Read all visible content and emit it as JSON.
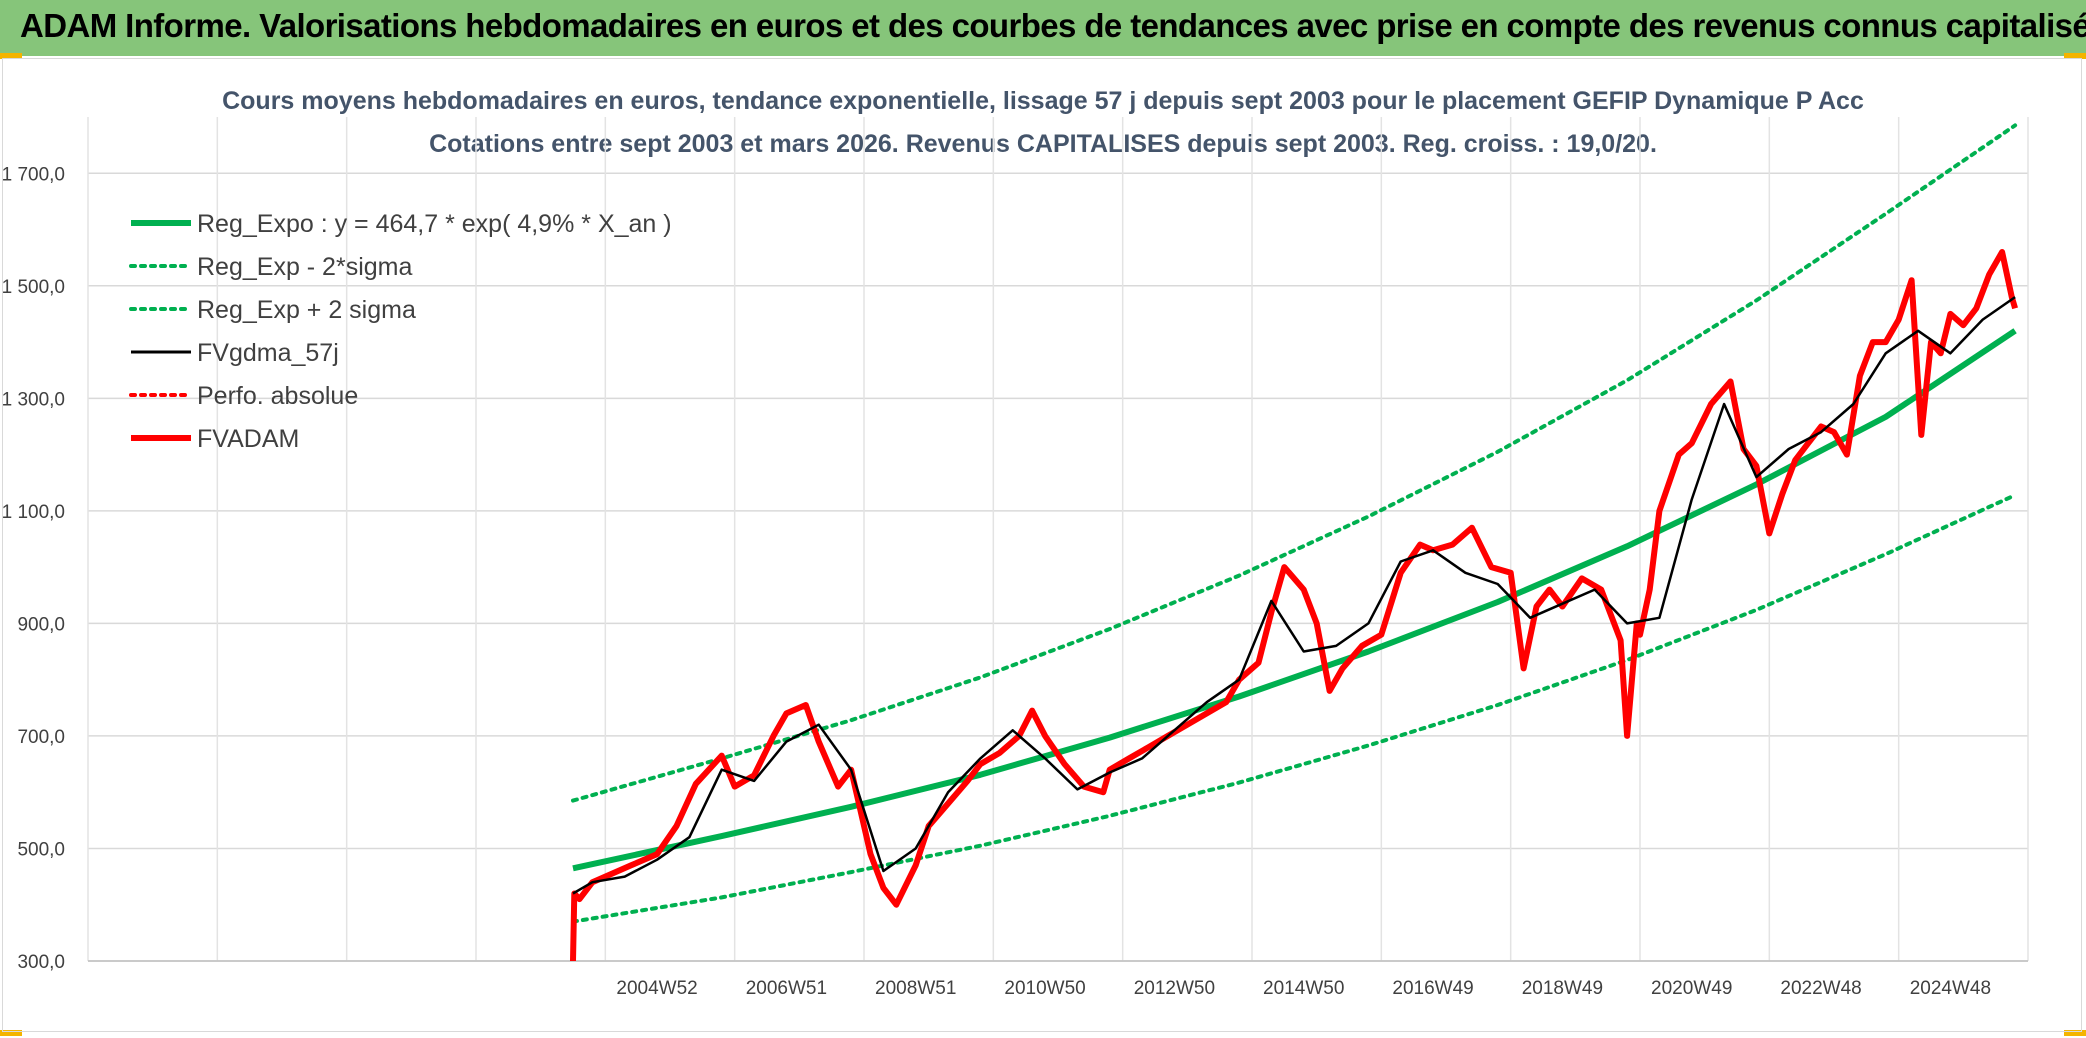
{
  "banner": {
    "title": "ADAM Informe. Valorisations hebdomadaires en euros et des courbes de tendances avec prise en compte des revenus connus capitalisés"
  },
  "chart_data": {
    "type": "line",
    "title": "Cours moyens hebdomadaires en euros, tendance exponentielle, lissage 57 j depuis sept 2003 pour le placement GEFIP Dynamique P Acc",
    "subtitle": "Cotations entre sept 2003 et mars 2026. Revenus CAPITALISES depuis sept 2003. Reg. croiss. : 19,0/20.",
    "xlabel": "",
    "ylabel": "",
    "x_range": [
      1996.2,
      2026.2
    ],
    "ylim": [
      300,
      1800
    ],
    "y_ticks": [
      300,
      500,
      700,
      900,
      1100,
      1300,
      1500,
      1700
    ],
    "y_tick_labels": [
      "300,0",
      "500,0",
      "700,0",
      "900,0",
      "1 100,0",
      "1 300,0",
      "1 500,0",
      "1 700,0"
    ],
    "x_ticks": [
      2005.0,
      2007.0,
      2009.0,
      2011.0,
      2013.0,
      2015.0,
      2017.0,
      2019.0,
      2021.0,
      2023.0,
      2025.0
    ],
    "x_tick_labels": [
      "2004W52",
      "2006W51",
      "2008W51",
      "2010W50",
      "2012W50",
      "2014W50",
      "2016W49",
      "2018W49",
      "2020W49",
      "2022W48",
      "2024W48"
    ],
    "grid_x": [
      1996.2,
      1998.2,
      2000.2,
      2002.2,
      2004.2,
      2006.2,
      2008.2,
      2010.2,
      2012.2,
      2014.2,
      2016.2,
      2018.2,
      2020.2,
      2022.2,
      2024.2,
      2026.2
    ],
    "legend_position": "top-left",
    "series": [
      {
        "name": "Reg_Expo : y = 464,7 * exp( 4,9% *  X_an )",
        "style": "solid-thick",
        "color": "#00b050",
        "x": [
          2003.7,
          2006,
          2008,
          2010,
          2012,
          2014,
          2016,
          2018,
          2020,
          2022,
          2024,
          2026.0
        ],
        "values": [
          464.7,
          522,
          574,
          631,
          697,
          770,
          850,
          938,
          1037,
          1147,
          1267,
          1420
        ]
      },
      {
        "name": "Reg_Exp - 2*sigma",
        "style": "dotted",
        "color": "#00b050",
        "x": [
          2003.7,
          2006,
          2008,
          2010,
          2012,
          2014,
          2016,
          2018,
          2020,
          2022,
          2024,
          2026.0
        ],
        "values": [
          370,
          413,
          458,
          505,
          558,
          617,
          683,
          755,
          835,
          924,
          1023,
          1128
        ]
      },
      {
        "name": "Reg_Exp + 2 sigma",
        "style": "dotted",
        "color": "#00b050",
        "x": [
          2003.7,
          2006,
          2008,
          2010,
          2012,
          2014,
          2016,
          2018,
          2020,
          2022,
          2024,
          2026.0
        ],
        "values": [
          585,
          660,
          728,
          804,
          890,
          985,
          1090,
          1205,
          1332,
          1474,
          1628,
          1785
        ]
      },
      {
        "name": "FVgdma_57j",
        "style": "solid",
        "color": "#000000",
        "x": [
          2003.7,
          2004.0,
          2004.5,
          2005.0,
          2005.5,
          2006.0,
          2006.5,
          2007.0,
          2007.5,
          2008.0,
          2008.5,
          2009.0,
          2009.5,
          2010.0,
          2010.5,
          2011.0,
          2011.5,
          2012.0,
          2012.5,
          2013.0,
          2013.5,
          2014.0,
          2014.5,
          2015.0,
          2015.5,
          2016.0,
          2016.5,
          2017.0,
          2017.5,
          2018.0,
          2018.5,
          2019.0,
          2019.5,
          2020.0,
          2020.5,
          2021.0,
          2021.5,
          2022.0,
          2022.5,
          2023.0,
          2023.5,
          2024.0,
          2024.5,
          2025.0,
          2025.5,
          2026.0
        ],
        "values": [
          420,
          440,
          450,
          480,
          520,
          640,
          620,
          690,
          720,
          640,
          460,
          500,
          600,
          660,
          710,
          660,
          605,
          635,
          660,
          710,
          760,
          800,
          940,
          850,
          860,
          900,
          1010,
          1030,
          990,
          970,
          910,
          935,
          960,
          900,
          910,
          1120,
          1290,
          1160,
          1210,
          1240,
          1290,
          1380,
          1420,
          1380,
          1440,
          1480
        ]
      },
      {
        "name": "Perfo. absolue",
        "style": "dotted",
        "color": "#ff0000",
        "x": [],
        "values": []
      },
      {
        "name": "FVADAM",
        "style": "solid-thick",
        "color": "#ff0000",
        "x": [
          2003.7,
          2003.72,
          2003.8,
          2004.0,
          2004.3,
          2004.6,
          2005.0,
          2005.3,
          2005.6,
          2006.0,
          2006.2,
          2006.5,
          2006.8,
          2007.0,
          2007.3,
          2007.5,
          2007.8,
          2008.0,
          2008.3,
          2008.5,
          2008.7,
          2009.0,
          2009.2,
          2009.5,
          2009.8,
          2010.0,
          2010.3,
          2010.6,
          2010.8,
          2011.0,
          2011.3,
          2011.6,
          2011.9,
          2012.0,
          2012.3,
          2012.6,
          2012.9,
          2013.2,
          2013.5,
          2013.8,
          2014.0,
          2014.3,
          2014.5,
          2014.7,
          2015.0,
          2015.2,
          2015.4,
          2015.6,
          2015.9,
          2016.2,
          2016.5,
          2016.8,
          2017.0,
          2017.3,
          2017.6,
          2017.9,
          2018.2,
          2018.4,
          2018.6,
          2018.8,
          2019.0,
          2019.3,
          2019.6,
          2019.9,
          2020.0,
          2020.15,
          2020.2,
          2020.35,
          2020.5,
          2020.8,
          2021.0,
          2021.3,
          2021.6,
          2021.8,
          2022.0,
          2022.2,
          2022.4,
          2022.6,
          2022.8,
          2023.0,
          2023.2,
          2023.4,
          2023.6,
          2023.8,
          2024.0,
          2024.2,
          2024.4,
          2024.55,
          2024.7,
          2024.85,
          2025.0,
          2025.2,
          2025.4,
          2025.6,
          2025.8,
          2025.95,
          2026.0
        ],
        "values": [
          300,
          420,
          410,
          440,
          455,
          470,
          490,
          540,
          615,
          665,
          610,
          630,
          700,
          740,
          755,
          690,
          610,
          640,
          490,
          430,
          400,
          470,
          540,
          580,
          620,
          650,
          670,
          700,
          745,
          700,
          650,
          610,
          600,
          640,
          660,
          680,
          700,
          720,
          740,
          760,
          800,
          830,
          920,
          1000,
          960,
          900,
          780,
          820,
          860,
          880,
          990,
          1040,
          1030,
          1040,
          1070,
          1000,
          990,
          820,
          930,
          960,
          930,
          980,
          960,
          870,
          700,
          900,
          880,
          960,
          1100,
          1200,
          1220,
          1290,
          1330,
          1210,
          1180,
          1060,
          1130,
          1190,
          1220,
          1250,
          1240,
          1200,
          1340,
          1400,
          1400,
          1440,
          1510,
          1235,
          1400,
          1380,
          1450,
          1430,
          1460,
          1520,
          1560,
          1480,
          1460
        ]
      }
    ]
  }
}
